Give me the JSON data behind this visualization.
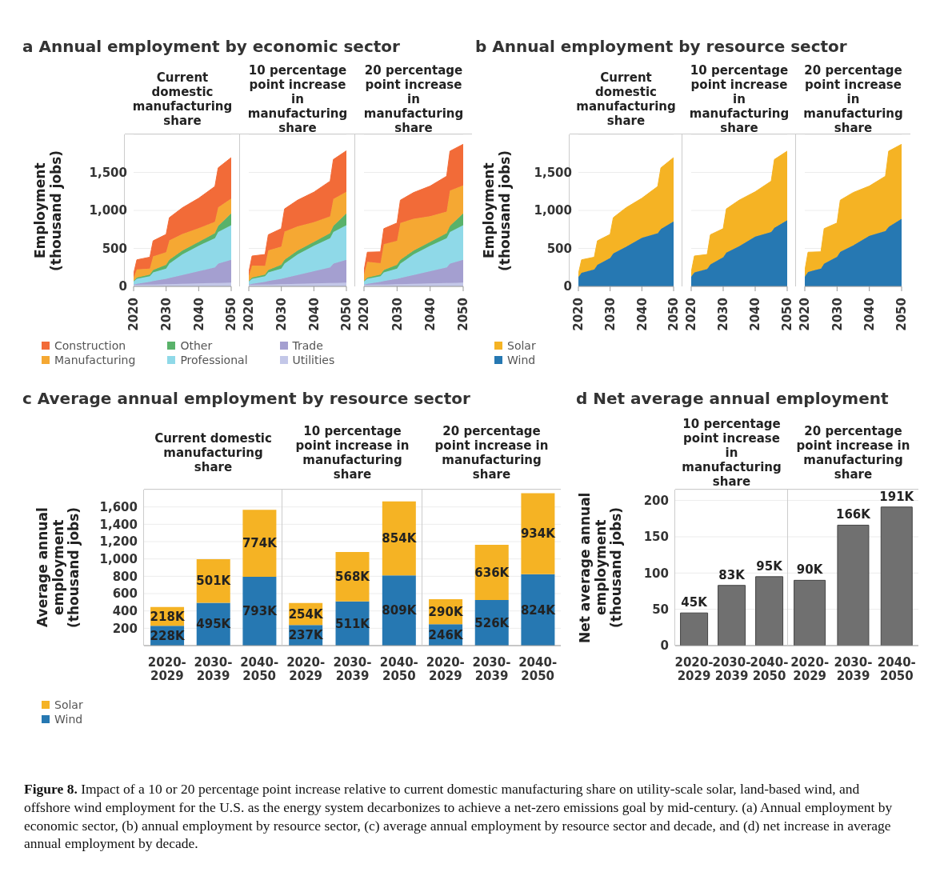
{
  "chart_data": [
    {
      "type": "area",
      "title": "a Annual employment by economic sector",
      "subtitle": "Current domestic manufacturing share",
      "ylabel": "Employment (thousand jobs)",
      "x": [
        2020,
        2021,
        2025,
        2026,
        2030,
        2031,
        2035,
        2040,
        2045,
        2046,
        2050
      ],
      "xlim": [
        2020,
        2050
      ],
      "xticks": [
        2020,
        2030,
        2040,
        2050
      ],
      "ylim": [
        0,
        2000
      ],
      "yticks": [
        0,
        500,
        {
          "value": 1000,
          "label": "1,000"
        },
        {
          "value": 1500,
          "label": "1,500"
        }
      ],
      "stacked": true,
      "grid": "y",
      "legend": "bottom",
      "series": [
        {
          "name": "Utilities",
          "color": "#c3c7e8",
          "values": [
            20,
            20,
            25,
            25,
            30,
            30,
            35,
            40,
            45,
            45,
            50
          ]
        },
        {
          "name": "Trade",
          "color": "#a49fd0",
          "values": [
            5,
            15,
            35,
            45,
            70,
            80,
            115,
            160,
            205,
            255,
            300
          ]
        },
        {
          "name": "Professional",
          "color": "#8fd9e8",
          "values": [
            40,
            65,
            75,
            115,
            135,
            190,
            270,
            335,
            385,
            415,
            455
          ]
        },
        {
          "name": "Other",
          "color": "#59b26a",
          "values": [
            5,
            15,
            20,
            30,
            50,
            50,
            50,
            50,
            65,
            80,
            155
          ]
        },
        {
          "name": "Manufacturing",
          "color": "#f5a833",
          "values": [
            45,
            110,
            80,
            180,
            165,
            255,
            220,
            180,
            150,
            245,
            195
          ]
        },
        {
          "name": "Construction",
          "color": "#f26b38",
          "values": [
            50,
            125,
            150,
            205,
            235,
            300,
            345,
            395,
            465,
            520,
            540
          ]
        }
      ]
    },
    {
      "type": "area",
      "subtitle": "10 percentage point increase in manufacturing share",
      "x": [
        2020,
        2021,
        2025,
        2026,
        2030,
        2031,
        2035,
        2040,
        2045,
        2046,
        2050
      ],
      "xlim": [
        2020,
        2050
      ],
      "xticks": [
        2020,
        2030,
        2040,
        2050
      ],
      "ylim": [
        0,
        2000
      ],
      "yticks": [
        0,
        500,
        1000,
        1500
      ],
      "stacked": true,
      "grid": "y",
      "tick_labels": "x",
      "series": [
        {
          "color": "#c3c7e8",
          "values": [
            20,
            20,
            25,
            25,
            30,
            30,
            35,
            40,
            45,
            45,
            50
          ]
        },
        {
          "color": "#a49fd0",
          "values": [
            5,
            15,
            35,
            45,
            70,
            80,
            115,
            160,
            205,
            255,
            300
          ]
        },
        {
          "color": "#8fd9e8",
          "values": [
            40,
            65,
            75,
            115,
            135,
            190,
            270,
            335,
            385,
            415,
            455
          ]
        },
        {
          "color": "#59b26a",
          "values": [
            5,
            15,
            20,
            30,
            50,
            50,
            50,
            50,
            65,
            80,
            155
          ]
        },
        {
          "color": "#f5a833",
          "values": [
            65,
            160,
            115,
            260,
            240,
            370,
            320,
            260,
            220,
            355,
            285
          ]
        },
        {
          "color": "#f26b38",
          "values": [
            50,
            125,
            150,
            205,
            235,
            300,
            345,
            395,
            465,
            520,
            540
          ]
        }
      ]
    },
    {
      "type": "area",
      "subtitle": "20 percentage point increase in manufacturing share",
      "x": [
        2020,
        2021,
        2025,
        2026,
        2030,
        2031,
        2035,
        2040,
        2045,
        2046,
        2050
      ],
      "xlim": [
        2020,
        2050
      ],
      "xticks": [
        2020,
        2030,
        2040,
        2050
      ],
      "ylim": [
        0,
        2000
      ],
      "yticks": [
        0,
        500,
        1000,
        1500
      ],
      "stacked": true,
      "grid": "y",
      "tick_labels": "x",
      "series": [
        {
          "color": "#c3c7e8",
          "values": [
            20,
            20,
            25,
            25,
            30,
            30,
            35,
            40,
            45,
            45,
            50
          ]
        },
        {
          "color": "#a49fd0",
          "values": [
            5,
            15,
            35,
            45,
            70,
            80,
            115,
            160,
            205,
            255,
            300
          ]
        },
        {
          "color": "#8fd9e8",
          "values": [
            40,
            65,
            75,
            115,
            135,
            190,
            270,
            335,
            385,
            415,
            455
          ]
        },
        {
          "color": "#59b26a",
          "values": [
            5,
            15,
            20,
            30,
            50,
            50,
            50,
            50,
            65,
            80,
            155
          ]
        },
        {
          "color": "#f5a833",
          "values": [
            85,
            210,
            150,
            340,
            315,
            485,
            420,
            340,
            285,
            465,
            370
          ]
        },
        {
          "color": "#f26b38",
          "values": [
            50,
            125,
            150,
            205,
            235,
            300,
            345,
            395,
            465,
            520,
            540
          ]
        }
      ]
    },
    {
      "type": "area",
      "title": "b Annual employment by resource sector",
      "subtitle": "Current domestic manufacturing share",
      "ylabel": "Employment (thousand jobs)",
      "x": [
        2020,
        2021,
        2025,
        2026,
        2030,
        2031,
        2035,
        2040,
        2045,
        2046,
        2050
      ],
      "xlim": [
        2020,
        2050
      ],
      "xticks": [
        2020,
        2030,
        2040,
        2050
      ],
      "ylim": [
        0,
        2000
      ],
      "yticks": [
        0,
        500,
        {
          "value": 1000,
          "label": "1,000"
        },
        {
          "value": 1500,
          "label": "1,500"
        }
      ],
      "stacked": true,
      "grid": "y",
      "legend": "bottom",
      "series": [
        {
          "name": "Wind",
          "color": "#2678b2",
          "values": [
            125,
            180,
            225,
            285,
            375,
            435,
            520,
            640,
            700,
            755,
            855
          ]
        },
        {
          "name": "Solar",
          "color": "#f5b324",
          "values": [
            40,
            170,
            160,
            315,
            310,
            470,
            515,
            520,
            615,
            805,
            840
          ]
        }
      ]
    },
    {
      "type": "area",
      "subtitle": "10 percentage point increase in manufacturing share",
      "x": [
        2020,
        2021,
        2025,
        2026,
        2030,
        2031,
        2035,
        2040,
        2045,
        2046,
        2050
      ],
      "xlim": [
        2020,
        2050
      ],
      "xticks": [
        2020,
        2030,
        2040,
        2050
      ],
      "ylim": [
        0,
        2000
      ],
      "yticks": [
        0,
        500,
        1000,
        1500
      ],
      "stacked": true,
      "grid": "y",
      "tick_labels": "x",
      "series": [
        {
          "color": "#2678b2",
          "values": [
            130,
            185,
            230,
            290,
            385,
            445,
            530,
            655,
            715,
            770,
            870
          ]
        },
        {
          "color": "#f5b324",
          "values": [
            55,
            215,
            190,
            390,
            375,
            575,
            605,
            590,
            670,
            900,
            910
          ]
        }
      ]
    },
    {
      "type": "area",
      "subtitle": "20 percentage point increase in manufacturing share",
      "x": [
        2020,
        2021,
        2025,
        2026,
        2030,
        2031,
        2035,
        2040,
        2045,
        2046,
        2050
      ],
      "xlim": [
        2020,
        2050
      ],
      "xticks": [
        2020,
        2030,
        2040,
        2050
      ],
      "ylim": [
        0,
        2000
      ],
      "yticks": [
        0,
        500,
        1000,
        1500
      ],
      "stacked": true,
      "grid": "y",
      "tick_labels": "x",
      "series": [
        {
          "color": "#2678b2",
          "values": [
            130,
            190,
            235,
            300,
            390,
            455,
            540,
            665,
            730,
            785,
            890
          ]
        },
        {
          "color": "#f5b324",
          "values": [
            75,
            260,
            220,
            460,
            445,
            680,
            695,
            655,
            720,
            995,
            980
          ]
        }
      ]
    },
    {
      "type": "bar",
      "title": "c Average annual employment by resource sector",
      "subtitle": "Current domestic manufacturing share",
      "ylabel": "Average annual employment (thousand jobs)",
      "categories": [
        "2020-2029",
        "2030-2039",
        "2040-2050"
      ],
      "ylim": [
        0,
        1800
      ],
      "yticks": [
        {
          "value": 200,
          "label": "200"
        },
        {
          "value": 400,
          "label": "400"
        },
        {
          "value": 600,
          "label": "600"
        },
        {
          "value": 800,
          "label": "800"
        },
        {
          "value": 1000,
          "label": "1,000"
        },
        {
          "value": 1200,
          "label": "1,200"
        },
        {
          "value": 1400,
          "label": "1,400"
        },
        {
          "value": 1600,
          "label": "1,600"
        }
      ],
      "stacked": true,
      "grid": "y",
      "legend": "bottom",
      "series": [
        {
          "name": "Wind",
          "color": "#2678b2",
          "values": [
            228,
            495,
            793
          ],
          "value_labels": [
            "228K",
            "495K",
            "793K"
          ]
        },
        {
          "name": "Solar",
          "color": "#f5b324",
          "values": [
            218,
            501,
            774
          ],
          "value_labels": [
            "218K",
            "501K",
            "774K"
          ]
        }
      ]
    },
    {
      "type": "bar",
      "subtitle": "10 percentage point increase in manufacturing share",
      "categories": [
        "2020-2029",
        "2030-2039",
        "2040-2050"
      ],
      "ylim": [
        0,
        1800
      ],
      "yticks": [
        200,
        400,
        600,
        800,
        1000,
        1200,
        1400,
        1600
      ],
      "stacked": true,
      "grid": "y",
      "tick_labels": "x",
      "series": [
        {
          "color": "#2678b2",
          "values": [
            237,
            511,
            809
          ],
          "value_labels": [
            "237K",
            "511K",
            "809K"
          ]
        },
        {
          "color": "#f5b324",
          "values": [
            254,
            568,
            854
          ],
          "value_labels": [
            "254K",
            "568K",
            "854K"
          ]
        }
      ]
    },
    {
      "type": "bar",
      "subtitle": "20 percentage point increase in manufacturing share",
      "categories": [
        "2020-2029",
        "2030-2039",
        "2040-2050"
      ],
      "ylim": [
        0,
        1800
      ],
      "yticks": [
        200,
        400,
        600,
        800,
        1000,
        1200,
        1400,
        1600
      ],
      "stacked": true,
      "grid": "y",
      "tick_labels": "x",
      "series": [
        {
          "color": "#2678b2",
          "values": [
            246,
            526,
            824
          ],
          "value_labels": [
            "246K",
            "526K",
            "824K"
          ]
        },
        {
          "color": "#f5b324",
          "values": [
            290,
            636,
            934
          ],
          "value_labels": [
            "290K",
            "636K",
            "934K"
          ]
        }
      ]
    },
    {
      "type": "bar",
      "title": "d Net average annual employment",
      "subtitle": "10 percentage point increase in manufacturing share",
      "ylabel": "Net average annual employment (thousand jobs)",
      "categories": [
        "2020-2029",
        "2030-2039",
        "2040-2050"
      ],
      "ylim": [
        0,
        215
      ],
      "yticks": [
        0,
        50,
        100,
        150,
        200
      ],
      "grid": "y",
      "series": [
        {
          "color": "#707070",
          "values": [
            45,
            83,
            95
          ],
          "value_labels": [
            "45K",
            "83K",
            "95K"
          ]
        }
      ]
    },
    {
      "type": "bar",
      "subtitle": "20 percentage point increase in manufacturing share",
      "categories": [
        "2020-2029",
        "2030-2039",
        "2040-2050"
      ],
      "ylim": [
        0,
        215
      ],
      "yticks": [
        0,
        50,
        100,
        150,
        200
      ],
      "grid": "y",
      "tick_labels": "x",
      "annotations": [
        "Figure 8.",
        "Impact of a 10 or 20 percentage point increase relative to current domestic manufacturing share on utility-scale solar, land-based wind, and offshore wind employment for the U.S. as the energy system decarbonizes to achieve a net-zero emissions goal by mid-century. (a) Annual employment by economic sector, (b) annual employment by resource sector, (c) average annual employment by resource sector and decade, and (d) net increase in average annual employment by decade."
      ],
      "series": [
        {
          "color": "#707070",
          "values": [
            90,
            166,
            191
          ],
          "value_labels": [
            "90K",
            "166K",
            "191K"
          ]
        }
      ]
    }
  ]
}
